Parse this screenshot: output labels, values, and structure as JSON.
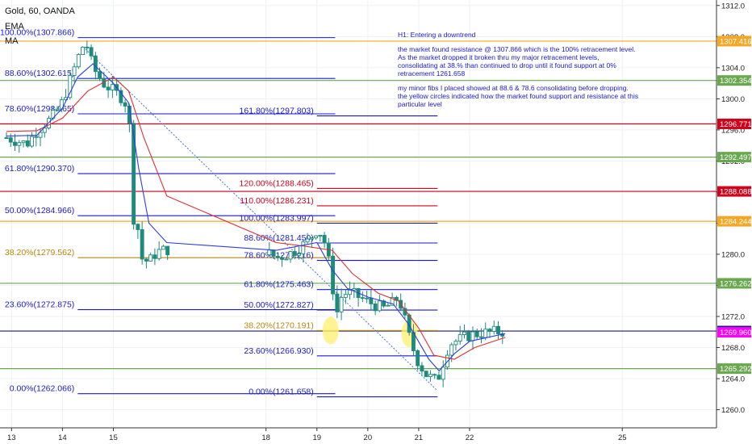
{
  "header": {
    "symbol": "Gold, 60, OANDA",
    "indicator_1": "EMA",
    "indicator_2": "MA"
  },
  "note": {
    "title": "H1: Entering a downtrend",
    "paragraph_1": "the market found resistance @ 1307.866 which is the 100% retracement level.\nAs the market dropped it broken thru my major retracement levels, consolidating at 38.% than continued to drop until it found support at 0% retracement 1261.658",
    "paragraph_2": "my minor fibs I placed showed at 88.6 & 78.6 consolidating before dropping.\nthe yellow circles indicated how the market found support and resistance at this particular level"
  },
  "colors": {
    "background": "#ffffff",
    "grid": "#eef1f5",
    "fib_blue": "#1a1ad0",
    "fib_red": "#d0021b",
    "fib_gold": "#b8860b",
    "hline_orange": "#f5a623",
    "hline_green": "#6aa84f",
    "hline_red": "#d0021b",
    "hline_navy": "#1a1a80",
    "hline_magenta": "#ff00ff",
    "candle": "#1e8a7a",
    "ema": "#2c3ee8",
    "ma": "#e03030",
    "highlight": "#fff176"
  },
  "chart_data": {
    "type": "candlestick",
    "y_axis": {
      "min": 1258.5,
      "max": 1312.5,
      "ticks": [
        1260.0,
        1264.0,
        1268.0,
        1272.0,
        1276.0,
        1280.0,
        1284.0,
        1288.0,
        1292.0,
        1296.0,
        1300.0,
        1304.0,
        1308.0,
        1312.0
      ]
    },
    "x_axis": {
      "min": 12.9,
      "max": 25.9,
      "labels": [
        {
          "x": 13,
          "text": "13"
        },
        {
          "x": 14,
          "text": "14"
        },
        {
          "x": 15,
          "text": "15"
        },
        {
          "x": 18,
          "text": "18"
        },
        {
          "x": 19,
          "text": "19"
        },
        {
          "x": 20,
          "text": "20"
        },
        {
          "x": 21,
          "text": "21"
        },
        {
          "x": 22,
          "text": "22"
        },
        {
          "x": 25,
          "text": "25"
        }
      ]
    },
    "price_tags": [
      {
        "value": "1307.416",
        "price": 1307.416,
        "color": "#f5a623"
      },
      {
        "value": "1302.354",
        "price": 1302.354,
        "color": "#6aa84f"
      },
      {
        "value": "1296.771",
        "price": 1296.771,
        "color": "#d0021b"
      },
      {
        "value": "1292.497",
        "price": 1292.497,
        "color": "#6aa84f"
      },
      {
        "value": "1288.088",
        "price": 1288.088,
        "color": "#d0021b"
      },
      {
        "value": "1284.244",
        "price": 1284.244,
        "color": "#f5a623"
      },
      {
        "value": "1276.262",
        "price": 1276.262,
        "color": "#6aa84f"
      },
      {
        "value": "1270.124",
        "price": 1270.124,
        "color": "#1a1a80"
      },
      {
        "value": "1269.960",
        "price": 1269.96,
        "color": "#ff00ff"
      },
      {
        "value": "1265.292",
        "price": 1265.292,
        "color": "#6aa84f"
      }
    ],
    "horizontal_lines": [
      {
        "price": 1307.416,
        "color": "#f5a623"
      },
      {
        "price": 1302.354,
        "color": "#6aa84f"
      },
      {
        "price": 1296.771,
        "color": "#d0021b"
      },
      {
        "price": 1292.497,
        "color": "#6aa84f"
      },
      {
        "price": 1288.088,
        "color": "#d0021b"
      },
      {
        "price": 1284.244,
        "color": "#f5a623"
      },
      {
        "price": 1276.262,
        "color": "#6aa84f"
      },
      {
        "price": 1270.124,
        "color": "#1a1a80"
      },
      {
        "price": 1265.292,
        "color": "#6aa84f"
      }
    ],
    "fib_major": {
      "x_start": 14.3,
      "x_end": 19.36,
      "levels": [
        {
          "label": "100.00%(1307.866)",
          "price": 1307.866,
          "color": "#1a1ad0"
        },
        {
          "label": "88.60%(1302.615)",
          "price": 1302.615,
          "color": "#1a1ad0"
        },
        {
          "label": "78.60%(1298.065)",
          "price": 1298.065,
          "color": "#1a1ad0"
        },
        {
          "label": "61.80%(1290.370)",
          "price": 1290.37,
          "color": "#1a1ad0"
        },
        {
          "label": "50.00%(1284.966)",
          "price": 1284.966,
          "color": "#1a1ad0"
        },
        {
          "label": "38.20%(1279.562)",
          "price": 1279.562,
          "color": "#b8860b"
        },
        {
          "label": "23.60%(1272.875)",
          "price": 1272.875,
          "color": "#1a1ad0"
        },
        {
          "label": "0.00%(1262.066)",
          "price": 1262.066,
          "color": "#1a1ad0"
        }
      ]
    },
    "fib_minor": {
      "x_start": 19.0,
      "x_end": 21.37,
      "levels": [
        {
          "label": "161.80%(1297.803)",
          "price": 1297.803,
          "color": "#1a1ad0"
        },
        {
          "label": "120.00%(1288.465)",
          "price": 1288.465,
          "color": "#d0021b"
        },
        {
          "label": "110.00%(1286.231)",
          "price": 1286.231,
          "color": "#d0021b"
        },
        {
          "label": "100.00%(1283.997)",
          "price": 1283.997,
          "color": "#1a1ad0"
        },
        {
          "label": "88.60%(1281.450)",
          "price": 1281.45,
          "color": "#1a1ad0"
        },
        {
          "label": "78.60%(1279.216)",
          "price": 1279.216,
          "color": "#1a1ad0"
        },
        {
          "label": "61.80%(1275.463)",
          "price": 1275.463,
          "color": "#1a1ad0"
        },
        {
          "label": "50.00%(1272.827)",
          "price": 1272.827,
          "color": "#1a1ad0"
        },
        {
          "label": "38.20%(1270.191)",
          "price": 1270.191,
          "color": "#b8860b"
        },
        {
          "label": "23.60%(1266.930)",
          "price": 1266.93,
          "color": "#1a1ad0"
        },
        {
          "label": "0.00%(1261.658)",
          "price": 1261.658,
          "color": "#1a1ad0"
        }
      ]
    },
    "highlight_circles": [
      {
        "x": 19.27,
        "price": 1270.2
      },
      {
        "x": 20.82,
        "price": 1269.8
      }
    ],
    "diagonal_trend": {
      "from": {
        "x": 14.45,
        "price": 1306.4
      },
      "to": {
        "x": 21.36,
        "price": 1262.5
      }
    },
    "price_path": [
      [
        12.9,
        1295.0
      ],
      [
        13.3,
        1294.2
      ],
      [
        13.5,
        1295.9
      ],
      [
        13.8,
        1297.6
      ],
      [
        14.0,
        1299.6
      ],
      [
        14.3,
        1305.2
      ],
      [
        14.45,
        1307.5
      ],
      [
        14.6,
        1304.0
      ],
      [
        14.8,
        1302.0
      ],
      [
        15.0,
        1301.0
      ],
      [
        15.2,
        1300.0
      ],
      [
        15.3,
        1298.5
      ],
      [
        15.35,
        1292.0
      ],
      [
        15.4,
        1284.5
      ],
      [
        15.5,
        1283.0
      ],
      [
        15.55,
        1279.5
      ],
      [
        15.7,
        1279.0
      ],
      [
        15.85,
        1280.3
      ],
      [
        16.05,
        1280.6
      ],
      [
        18.1,
        1280.0
      ],
      [
        18.2,
        1279.5
      ],
      [
        18.5,
        1280.2
      ],
      [
        18.8,
        1281.5
      ],
      [
        19.0,
        1283.2
      ],
      [
        19.1,
        1282.5
      ],
      [
        19.2,
        1280.5
      ],
      [
        19.3,
        1276.0
      ],
      [
        19.4,
        1272.5
      ],
      [
        19.5,
        1275.0
      ],
      [
        19.7,
        1274.9
      ],
      [
        20.0,
        1273.9
      ],
      [
        20.3,
        1273.0
      ],
      [
        20.5,
        1273.8
      ],
      [
        20.6,
        1274.5
      ],
      [
        20.7,
        1272.3
      ],
      [
        20.85,
        1268.5
      ],
      [
        21.0,
        1266.0
      ],
      [
        21.15,
        1264.5
      ],
      [
        21.36,
        1263.6
      ],
      [
        21.5,
        1266.5
      ],
      [
        21.6,
        1268.5
      ],
      [
        21.8,
        1269.0
      ],
      [
        22.0,
        1269.6
      ],
      [
        22.3,
        1269.9
      ],
      [
        22.7,
        1270.1
      ]
    ],
    "ema_path": [
      [
        12.9,
        1295.2
      ],
      [
        13.5,
        1295.3
      ],
      [
        14.0,
        1298.8
      ],
      [
        14.3,
        1302.8
      ],
      [
        14.6,
        1304.5
      ],
      [
        15.0,
        1302.0
      ],
      [
        15.3,
        1299.5
      ],
      [
        15.5,
        1291.0
      ],
      [
        15.7,
        1284.0
      ],
      [
        16.05,
        1281.5
      ],
      [
        18.2,
        1280.5
      ],
      [
        19.0,
        1281.5
      ],
      [
        19.3,
        1278.0
      ],
      [
        19.6,
        1275.6
      ],
      [
        20.0,
        1274.5
      ],
      [
        20.5,
        1273.6
      ],
      [
        20.8,
        1271.0
      ],
      [
        21.2,
        1266.5
      ],
      [
        21.4,
        1265.0
      ],
      [
        21.7,
        1267.2
      ],
      [
        22.0,
        1268.8
      ],
      [
        22.7,
        1269.8
      ]
    ],
    "ma_path": [
      [
        12.9,
        1295.8
      ],
      [
        13.5,
        1295.9
      ],
      [
        14.0,
        1297.5
      ],
      [
        14.5,
        1301.0
      ],
      [
        15.0,
        1302.8
      ],
      [
        15.3,
        1301.0
      ],
      [
        15.6,
        1295.0
      ],
      [
        16.05,
        1287.5
      ],
      [
        18.2,
        1281.5
      ],
      [
        18.8,
        1281.0
      ],
      [
        19.3,
        1280.5
      ],
      [
        19.7,
        1277.5
      ],
      [
        20.2,
        1275.0
      ],
      [
        20.6,
        1274.0
      ],
      [
        21.0,
        1270.5
      ],
      [
        21.3,
        1267.0
      ],
      [
        21.7,
        1266.5
      ],
      [
        22.1,
        1268.0
      ],
      [
        22.7,
        1269.3
      ]
    ]
  }
}
